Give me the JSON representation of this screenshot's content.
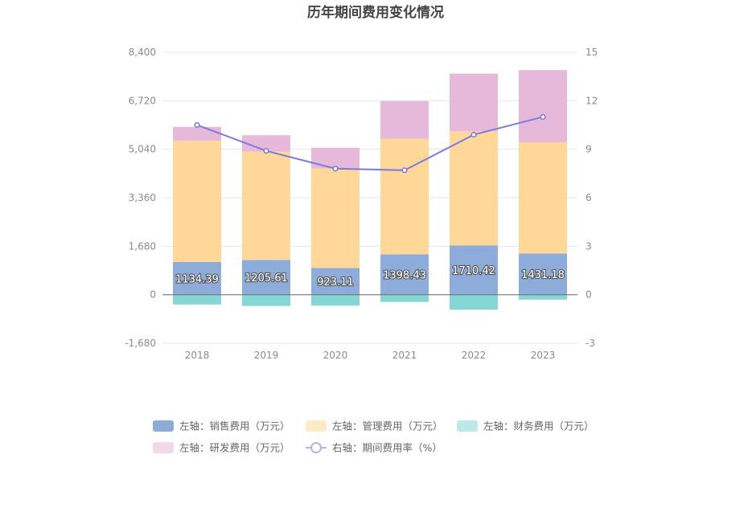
{
  "chart_data": {
    "type": "bar",
    "title": "历年期间费用变化情况",
    "categories": [
      "2018",
      "2019",
      "2020",
      "2021",
      "2022",
      "2023"
    ],
    "left_axis": {
      "ticks": [
        "-1,680",
        "0",
        "1,680",
        "3,360",
        "5,040",
        "6,720",
        "8,400"
      ],
      "range": [
        -1680,
        8400
      ]
    },
    "right_axis": {
      "ticks": [
        "-3",
        "0",
        "3",
        "6",
        "9",
        "12",
        "15"
      ],
      "range": [
        -3,
        15
      ]
    },
    "series": [
      {
        "name": "左轴：销售费用（万元）",
        "axis": "left",
        "stack": "cost",
        "color": "#8eacd9",
        "values": [
          1134.39,
          1205.61,
          923.11,
          1398.43,
          1710.42,
          1431.18
        ],
        "labels": [
          "1134.39",
          "1205.61",
          "923.11",
          "1398.43",
          "1710.42",
          "1431.18"
        ]
      },
      {
        "name": "左轴：管理费用（万元）",
        "axis": "left",
        "stack": "cost",
        "color": "#ffd899",
        "values": [
          4200,
          3750,
          3450,
          4010,
          3950,
          3850
        ]
      },
      {
        "name": "左轴：财务费用（万元）",
        "axis": "left",
        "stack": "cost",
        "color": "#86d6d6",
        "values": [
          -340,
          -390,
          -380,
          -250,
          -520,
          -170
        ]
      },
      {
        "name": "左轴：研发费用（万元）",
        "axis": "left",
        "stack": "cost",
        "color": "#e6b8da",
        "values": [
          480,
          570,
          720,
          1300,
          2000,
          2500
        ]
      },
      {
        "name": "右轴：期间费用率（%）",
        "axis": "right",
        "type": "line",
        "color": "#7b7be0",
        "values": [
          10.5,
          8.9,
          7.8,
          7.7,
          9.9,
          11.0
        ]
      }
    ],
    "legend_position": "bottom",
    "grid": true
  }
}
